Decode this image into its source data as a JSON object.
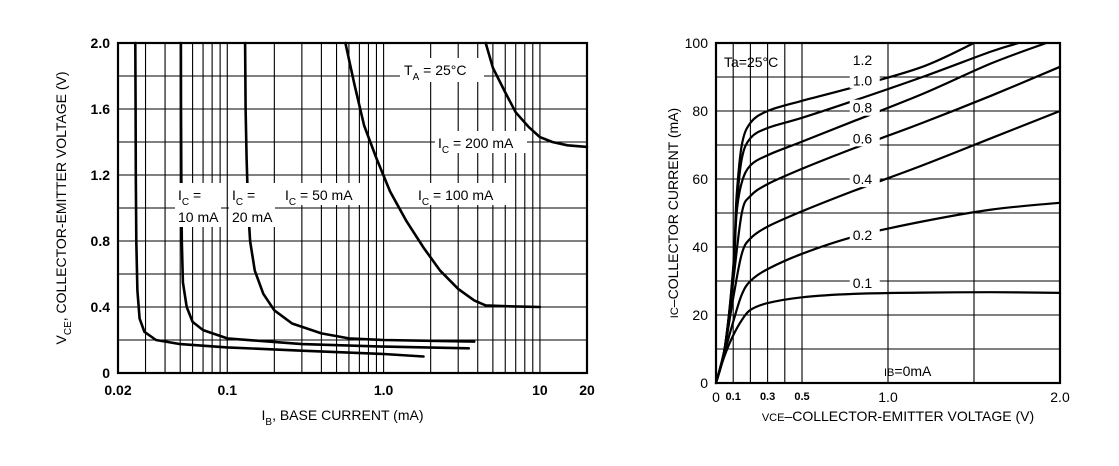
{
  "chart_data": [
    {
      "type": "line",
      "xlabel": "I_B, BASE CURRENT (mA)",
      "xlabel_main": "I",
      "xlabel_sub": "B",
      "xlabel_rest": ", BASE CURRENT (mA)",
      "ylabel": "V_CE, COLLECTOR-EMITTER VOLTAGE (V)",
      "ylabel_main": "V",
      "ylabel_sub": "CE",
      "ylabel_rest": ", COLLECTOR-EMITTER VOLTAGE (V)",
      "x_scale": "log",
      "xlim": [
        0.02,
        20
      ],
      "ylim": [
        0,
        2.0
      ],
      "x_ticks": [
        "0.02",
        "0.1",
        "1.0",
        "10",
        "20"
      ],
      "y_ticks": [
        "0",
        "0.4",
        "0.8",
        "1.2",
        "1.6",
        "2.0"
      ],
      "grid": true,
      "annotation": {
        "main": "T",
        "sub": "A",
        "rest": " = 25°C"
      },
      "series": [
        {
          "name": "IC = 10 mA",
          "label_lines": [
            {
              "main": "I",
              "sub": "C",
              "rest": " ="
            },
            {
              "main": "10 mA"
            }
          ],
          "x": [
            0.0258,
            0.0259,
            0.026,
            0.0262,
            0.0266,
            0.0275,
            0.0295,
            0.035,
            0.05,
            0.1,
            0.3,
            1.0,
            1.8
          ],
          "y": [
            2.0,
            1.6,
            1.2,
            0.8,
            0.5,
            0.33,
            0.25,
            0.2,
            0.175,
            0.155,
            0.135,
            0.115,
            0.1
          ]
        },
        {
          "name": "IC = 20 mA",
          "label_lines": [
            {
              "main": "I",
              "sub": "C",
              "rest": " ="
            },
            {
              "main": "20 mA"
            }
          ],
          "x": [
            0.0505,
            0.0506,
            0.0508,
            0.0512,
            0.052,
            0.055,
            0.06,
            0.07,
            0.1,
            0.3,
            1.0,
            3.5
          ],
          "y": [
            2.0,
            1.6,
            1.2,
            0.8,
            0.55,
            0.4,
            0.31,
            0.26,
            0.21,
            0.175,
            0.16,
            0.15
          ]
        },
        {
          "name": "IC = 50 mA",
          "label_lines": [
            {
              "main": "I",
              "sub": "C",
              "rest": " = 50 mA"
            }
          ],
          "x": [
            0.13,
            0.131,
            0.133,
            0.136,
            0.14,
            0.15,
            0.17,
            0.2,
            0.26,
            0.4,
            0.6,
            1.0,
            2.0,
            3.8
          ],
          "y": [
            2.0,
            1.6,
            1.3,
            1.0,
            0.8,
            0.62,
            0.48,
            0.38,
            0.3,
            0.24,
            0.21,
            0.2,
            0.195,
            0.19
          ]
        },
        {
          "name": "IC = 100 mA",
          "label_lines": [
            {
              "main": "I",
              "sub": "C",
              "rest": " = 100 mA"
            }
          ],
          "x": [
            0.57,
            0.65,
            0.75,
            0.9,
            1.1,
            1.4,
            1.8,
            2.3,
            3.0,
            3.8,
            4.5,
            6.0,
            10.0
          ],
          "y": [
            2.0,
            1.75,
            1.5,
            1.3,
            1.1,
            0.92,
            0.76,
            0.62,
            0.51,
            0.44,
            0.41,
            0.405,
            0.4
          ]
        },
        {
          "name": "IC = 200 mA",
          "label_lines": [
            {
              "main": "I",
              "sub": "C",
              "rest": " = 200 mA"
            }
          ],
          "x": [
            4.5,
            5.0,
            6.0,
            7.0,
            8.5,
            10.0,
            12.0,
            15.0,
            20.0
          ],
          "y": [
            2.0,
            1.85,
            1.7,
            1.58,
            1.49,
            1.43,
            1.4,
            1.38,
            1.37
          ]
        }
      ]
    },
    {
      "type": "line",
      "xlabel": "VCE–COLLECTOR-EMITTER  VOLTAGE (V)",
      "xlabel_sub": "VCE",
      "xlabel_rest": "–COLLECTOR-EMITTER  VOLTAGE (V)",
      "ylabel": "IC–COLLECTOR  CURRENT  (mA)",
      "ylabel_sub": "IC",
      "ylabel_rest": "–COLLECTOR  CURRENT  (mA)",
      "xlim": [
        0,
        2.0
      ],
      "ylim": [
        0,
        100
      ],
      "x_ticks": [
        {
          "value": 0,
          "label": "0"
        },
        {
          "value": 0.1,
          "label": "0.1"
        },
        {
          "value": 0.3,
          "label": "0.3"
        },
        {
          "value": 0.5,
          "label": "0.5"
        },
        {
          "value": 1.0,
          "label": "1.0"
        },
        {
          "value": 2.0,
          "label": "2.0"
        }
      ],
      "y_ticks": [
        "0",
        "20",
        "40",
        "60",
        "80",
        "100"
      ],
      "grid": true,
      "annotation": "Ta=25°C",
      "annotation_bottom": "IB=0mA",
      "annotation_bottom_sub": "IB",
      "annotation_bottom_rest": "=0mA",
      "series": [
        {
          "name": "0.1",
          "x": [
            0,
            0.05,
            0.1,
            0.15,
            0.2,
            0.3,
            0.5,
            0.8,
            1.2,
            1.6,
            2.0
          ],
          "y": [
            0,
            8,
            14,
            18.5,
            21.5,
            23.5,
            25.2,
            26.2,
            26.6,
            26.7,
            26.5
          ]
        },
        {
          "name": "0.2",
          "x": [
            0,
            0.05,
            0.1,
            0.15,
            0.2,
            0.3,
            0.5,
            0.8,
            1.2,
            1.6,
            2.0
          ],
          "y": [
            0,
            9,
            18,
            26,
            30,
            33.5,
            38,
            43,
            47.5,
            51,
            53
          ]
        },
        {
          "name": "0.4",
          "x": [
            0,
            0.05,
            0.1,
            0.15,
            0.2,
            0.3,
            0.5,
            0.8,
            1.2,
            1.6,
            2.0
          ],
          "y": [
            0,
            10,
            25,
            38,
            42.5,
            46,
            50.5,
            56.5,
            64,
            72,
            80
          ]
        },
        {
          "name": "0.6",
          "x": [
            0,
            0.05,
            0.1,
            0.15,
            0.2,
            0.3,
            0.5,
            0.8,
            1.2,
            1.6,
            2.0
          ],
          "y": [
            0,
            10,
            30,
            50,
            55,
            58.5,
            63,
            69,
            76.5,
            84.5,
            93
          ]
        },
        {
          "name": "0.8",
          "x": [
            0,
            0.05,
            0.1,
            0.12,
            0.15,
            0.2,
            0.3,
            0.5,
            0.8,
            1.2,
            1.6,
            1.92
          ],
          "y": [
            0,
            10,
            32,
            50,
            59,
            64,
            67,
            71,
            77,
            85,
            94,
            100
          ]
        },
        {
          "name": "1.0",
          "x": [
            0,
            0.05,
            0.1,
            0.12,
            0.15,
            0.2,
            0.3,
            0.5,
            0.8,
            1.2,
            1.6,
            1.76
          ],
          "y": [
            0,
            10,
            33,
            52,
            66,
            72,
            75,
            78,
            83,
            90,
            97.5,
            100
          ]
        },
        {
          "name": "1.2",
          "x": [
            0,
            0.05,
            0.1,
            0.12,
            0.15,
            0.2,
            0.3,
            0.5,
            0.8,
            1.2,
            1.5
          ],
          "y": [
            0,
            10,
            34,
            55,
            70,
            76.5,
            80,
            83,
            87,
            93,
            100
          ]
        }
      ],
      "curve_labels": [
        {
          "text": "1.2",
          "x": 0.76,
          "y": 93.5
        },
        {
          "text": "1.0",
          "x": 0.76,
          "y": 87.5
        },
        {
          "text": "0.8",
          "x": 0.76,
          "y": 79.5
        },
        {
          "text": "0.6",
          "x": 0.76,
          "y": 70.5
        },
        {
          "text": "0.4",
          "x": 0.76,
          "y": 58.5
        },
        {
          "text": "0.2",
          "x": 0.76,
          "y": 42
        },
        {
          "text": "0.1",
          "x": 0.76,
          "y": 28
        }
      ]
    }
  ]
}
